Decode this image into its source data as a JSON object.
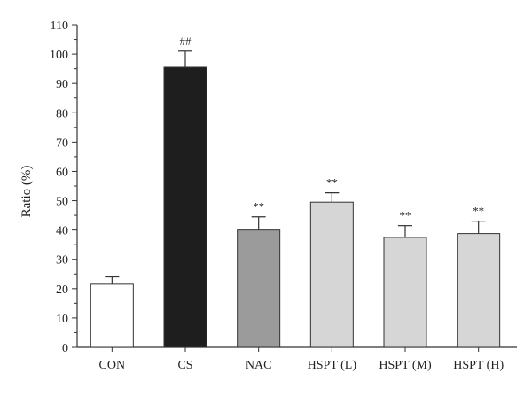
{
  "chart_data": {
    "type": "bar",
    "title": "",
    "xlabel": "",
    "ylabel": "Ratio (%)",
    "ylim": [
      0,
      110
    ],
    "yticks": [
      0,
      10,
      20,
      30,
      40,
      50,
      60,
      70,
      80,
      90,
      100,
      110
    ],
    "categories": [
      "CON",
      "CS",
      "NAC",
      "HSPT (L)",
      "HSPT (M)",
      "HSPT (H)"
    ],
    "values": [
      21.5,
      95.5,
      40,
      49.5,
      37.5,
      38.8
    ],
    "errors": [
      2.5,
      5.5,
      4.5,
      3.2,
      4,
      4.2
    ],
    "annotations": [
      "",
      "##",
      "**",
      "**",
      "**",
      "**"
    ],
    "bar_colors": [
      "#ffffff",
      "#1e1e1e",
      "#9b9b9b",
      "#d6d6d6",
      "#d6d6d6",
      "#d6d6d6"
    ],
    "grid": false,
    "legend": "none"
  }
}
